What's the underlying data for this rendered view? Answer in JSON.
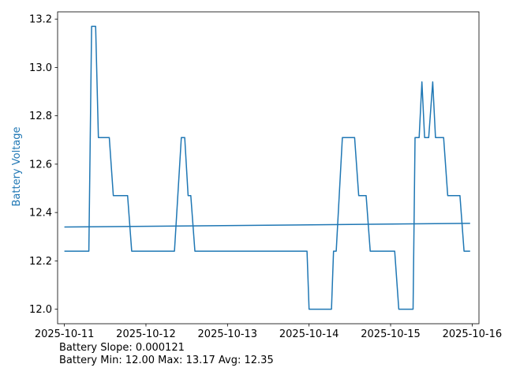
{
  "chart_data": {
    "type": "line",
    "title": "",
    "xlabel": "",
    "ylabel": "Battery Voltage",
    "ylabel_color": "#1f77b4",
    "line_color": "#1f77b4",
    "grid": false,
    "x_range": [
      "2025-10-10 22:00",
      "2025-10-16 02:00"
    ],
    "ylim": [
      11.94,
      13.23
    ],
    "x_ticks": [
      "2025-10-11",
      "2025-10-12",
      "2025-10-13",
      "2025-10-14",
      "2025-10-15",
      "2025-10-16"
    ],
    "y_ticks": [
      "12.0",
      "12.2",
      "12.4",
      "12.6",
      "12.8",
      "13.0",
      "13.2"
    ],
    "series": [
      {
        "values": [
          [
            "2025-10-11 00:00",
            12.24
          ],
          [
            "2025-10-11 07:12",
            12.24
          ],
          [
            "2025-10-11 08:00",
            13.17
          ],
          [
            "2025-10-11 09:12",
            13.17
          ],
          [
            "2025-10-11 10:00",
            12.71
          ],
          [
            "2025-10-11 13:12",
            12.71
          ],
          [
            "2025-10-11 14:24",
            12.47
          ],
          [
            "2025-10-11 18:36",
            12.47
          ],
          [
            "2025-10-11 19:48",
            12.24
          ],
          [
            "2025-10-12 08:24",
            12.24
          ],
          [
            "2025-10-12 10:24",
            12.71
          ],
          [
            "2025-10-12 11:24",
            12.71
          ],
          [
            "2025-10-12 12:24",
            12.47
          ],
          [
            "2025-10-12 13:12",
            12.47
          ],
          [
            "2025-10-12 14:24",
            12.24
          ],
          [
            "2025-10-13 23:24",
            12.24
          ],
          [
            "2025-10-14 00:00",
            12.0
          ],
          [
            "2025-10-14 06:36",
            12.0
          ],
          [
            "2025-10-14 07:12",
            12.24
          ],
          [
            "2025-10-14 08:00",
            12.24
          ],
          [
            "2025-10-14 09:48",
            12.71
          ],
          [
            "2025-10-14 13:24",
            12.71
          ],
          [
            "2025-10-14 14:36",
            12.47
          ],
          [
            "2025-10-14 16:48",
            12.47
          ],
          [
            "2025-10-14 18:00",
            12.24
          ],
          [
            "2025-10-15 01:12",
            12.24
          ],
          [
            "2025-10-15 02:24",
            12.0
          ],
          [
            "2025-10-15 06:36",
            12.0
          ],
          [
            "2025-10-15 07:12",
            12.71
          ],
          [
            "2025-10-15 08:24",
            12.71
          ],
          [
            "2025-10-15 09:12",
            12.94
          ],
          [
            "2025-10-15 10:00",
            12.71
          ],
          [
            "2025-10-15 11:12",
            12.71
          ],
          [
            "2025-10-15 12:24",
            12.94
          ],
          [
            "2025-10-15 13:12",
            12.71
          ],
          [
            "2025-10-15 15:36",
            12.71
          ],
          [
            "2025-10-15 16:48",
            12.47
          ],
          [
            "2025-10-15 20:24",
            12.47
          ],
          [
            "2025-10-15 21:36",
            12.24
          ],
          [
            "2025-10-15 23:24",
            12.24
          ]
        ]
      },
      {
        "values": [
          [
            "2025-10-11 00:00",
            12.34
          ],
          [
            "2025-10-15 23:24",
            12.355
          ]
        ]
      }
    ]
  },
  "stats": {
    "line1": "Battery Slope: 0.000121",
    "line2": "Battery Min: 12.00 Max: 13.17 Avg: 12.35"
  }
}
